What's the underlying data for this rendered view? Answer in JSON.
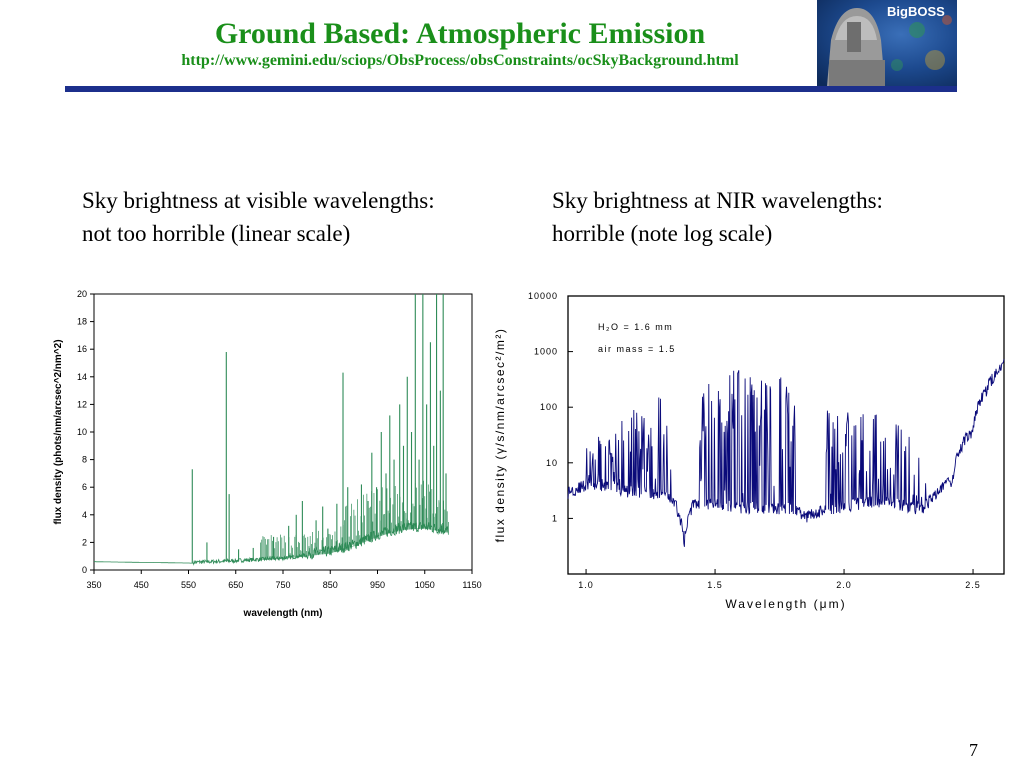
{
  "slide": {
    "title": "Ground Based: Atmospheric Emission",
    "url": "http://www.gemini.edu/sciops/ObsProcess/obsConstraints/ocSkyBackground.html",
    "logo_text": "BigBOSS",
    "caption_left_line1": "Sky brightness at visible wavelengths:",
    "caption_left_line2": "not too horrible (linear scale)",
    "caption_right_line1": "Sky brightness at NIR wavelengths:",
    "caption_right_line2": "horrible (note log scale)",
    "page_number": "7",
    "colors": {
      "title_green": "#1a8f1a",
      "rule_blue": "#1c2f8c",
      "visible_series": "#2e8b57",
      "nir_series": "#0a0a7a"
    }
  },
  "chart_data": [
    {
      "type": "line",
      "xlabel": "wavelength (nm)",
      "ylabel": "flux density (phots/nm/arcsec^2/nm^2)",
      "xlim": [
        350,
        1150
      ],
      "ylim": [
        0,
        20
      ],
      "xticks": [
        "350",
        "450",
        "550",
        "650",
        "750",
        "850",
        "950",
        "1050",
        "1150"
      ],
      "yticks": [
        "0",
        "2",
        "4",
        "6",
        "8",
        "10",
        "12",
        "14",
        "16",
        "18",
        "20"
      ],
      "grid": false,
      "continuum": {
        "x": [
          350,
          560,
          640,
          750,
          850,
          900,
          950,
          1000,
          1050,
          1100
        ],
        "y": [
          0.6,
          0.5,
          0.6,
          0.8,
          1.2,
          1.7,
          2.4,
          2.9,
          3.0,
          2.7
        ]
      },
      "emission_lines": {
        "x": [
          558,
          589,
          630,
          636,
          656,
          687,
          730,
          762,
          778,
          791,
          820,
          834,
          845,
          864,
          877,
          887,
          916,
          930,
          938,
          948,
          958,
          968,
          976,
          985,
          997,
          1005,
          1013,
          1022,
          1030,
          1038,
          1046,
          1054,
          1062,
          1069,
          1075,
          1083,
          1089,
          1095
        ],
        "y": [
          7.3,
          2.0,
          15.8,
          5.5,
          1.5,
          1.6,
          2.4,
          3.2,
          4.0,
          5.0,
          3.6,
          4.6,
          3.0,
          4.8,
          14.3,
          6.0,
          6.2,
          5.0,
          8.5,
          6.0,
          10.0,
          7.0,
          11.2,
          8.0,
          12.0,
          9.0,
          14.0,
          10.0,
          20.0,
          8.0,
          20.0,
          12.0,
          16.5,
          9.0,
          20.0,
          13.0,
          20.0,
          7.0
        ]
      }
    },
    {
      "type": "line",
      "xlabel": "Wavelength (μm)",
      "ylabel": "flux density (γ/s/nm/arcsec²/m²)",
      "xlim": [
        0.93,
        2.62
      ],
      "ylim": [
        0.1,
        10000
      ],
      "log_y": true,
      "xticks": [
        "1.0",
        "1.5",
        "2.0",
        "2.5"
      ],
      "yticks": [
        "1",
        "10",
        "100",
        "1000",
        "10000"
      ],
      "grid": false,
      "annotations": [
        "H₂O = 1.6 mm",
        "air mass = 1.5"
      ],
      "envelope": {
        "x": [
          0.93,
          1.0,
          1.1,
          1.15,
          1.25,
          1.33,
          1.38,
          1.42,
          1.5,
          1.6,
          1.7,
          1.8,
          1.85,
          1.95,
          2.0,
          2.1,
          2.2,
          2.3,
          2.35,
          2.42,
          2.5,
          2.55,
          2.62
        ],
        "y": [
          3,
          4,
          4,
          3.2,
          3,
          2.5,
          0.35,
          2,
          1.8,
          1.6,
          1.6,
          1.5,
          1.1,
          1.5,
          1.7,
          2,
          1.9,
          1.5,
          2.5,
          5,
          40,
          200,
          600
        ]
      },
      "peaks": {
        "x": [
          1.0,
          1.05,
          1.1,
          1.15,
          1.2,
          1.25,
          1.28,
          1.31,
          1.45,
          1.48,
          1.5,
          1.52,
          1.55,
          1.58,
          1.6,
          1.63,
          1.67,
          1.7,
          1.73,
          1.77,
          1.8,
          1.94,
          1.98,
          2.0,
          2.03,
          2.05,
          2.08,
          2.1,
          2.13,
          2.15,
          2.18,
          2.2,
          2.23,
          2.26,
          2.3
        ],
        "y": [
          20,
          30,
          40,
          60,
          100,
          80,
          150,
          60,
          200,
          300,
          350,
          500,
          400,
          500,
          600,
          350,
          400,
          500,
          250,
          350,
          200,
          100,
          150,
          120,
          100,
          90,
          100,
          70,
          80,
          60,
          50,
          50,
          40,
          30,
          20
        ]
      }
    }
  ]
}
